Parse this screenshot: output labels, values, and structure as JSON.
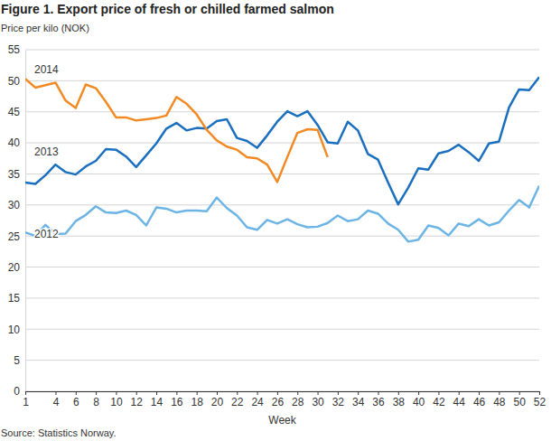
{
  "chart_data": {
    "type": "line",
    "title": "Figure 1. Export price of fresh or chilled farmed salmon",
    "subtitle": "Price per kilo (NOK)",
    "x_label": "Week",
    "source": "Source: Statistics Norway.",
    "x": [
      1,
      2,
      3,
      4,
      5,
      6,
      7,
      8,
      9,
      10,
      11,
      12,
      13,
      14,
      15,
      16,
      17,
      18,
      19,
      20,
      21,
      22,
      23,
      24,
      25,
      26,
      27,
      28,
      29,
      30,
      31,
      32,
      33,
      34,
      35,
      36,
      37,
      38,
      39,
      40,
      41,
      42,
      43,
      44,
      45,
      46,
      47,
      48,
      49,
      50,
      51,
      52
    ],
    "xlim": [
      1,
      52
    ],
    "xticks": [
      1,
      4,
      6,
      8,
      10,
      12,
      14,
      16,
      18,
      20,
      22,
      24,
      26,
      28,
      30,
      32,
      34,
      36,
      38,
      40,
      42,
      44,
      46,
      48,
      50,
      52
    ],
    "ylim": [
      0,
      55
    ],
    "yticks": [
      0,
      5,
      10,
      15,
      20,
      25,
      30,
      35,
      40,
      45,
      50,
      55
    ],
    "grid": true,
    "series": [
      {
        "name": "2012",
        "color": "#6cb4e4",
        "values": [
          25.6,
          25.0,
          26.8,
          25.3,
          25.4,
          27.4,
          28.4,
          29.8,
          28.8,
          28.7,
          29.1,
          28.4,
          26.7,
          29.6,
          29.4,
          28.8,
          29.1,
          29.1,
          29.0,
          31.2,
          29.5,
          28.3,
          26.4,
          26.0,
          27.6,
          27.0,
          27.7,
          26.9,
          26.4,
          26.5,
          27.1,
          28.3,
          27.4,
          27.7,
          29.1,
          28.6,
          27.0,
          26.0,
          24.1,
          24.4,
          26.7,
          26.3,
          25.1,
          27.0,
          26.6,
          27.7,
          26.7,
          27.2,
          29.1,
          30.8,
          29.6,
          33.1
        ]
      },
      {
        "name": "2013",
        "color": "#1a6fbf",
        "values": [
          33.6,
          33.4,
          34.8,
          36.5,
          35.3,
          34.9,
          36.2,
          37.1,
          39.0,
          38.9,
          37.8,
          36.1,
          38.0,
          39.9,
          42.3,
          43.2,
          42.0,
          42.4,
          42.3,
          43.5,
          43.8,
          40.8,
          40.3,
          39.2,
          41.2,
          43.4,
          45.1,
          44.3,
          45.1,
          42.9,
          40.1,
          39.9,
          43.4,
          42.0,
          38.2,
          37.3,
          33.6,
          30.1,
          32.8,
          35.9,
          35.7,
          38.3,
          38.7,
          39.7,
          38.5,
          37.1,
          39.9,
          40.2,
          45.7,
          48.6,
          48.5,
          50.6
        ]
      },
      {
        "name": "2014",
        "color": "#f28a24",
        "values": [
          50.3,
          48.9,
          49.3,
          49.7,
          46.8,
          45.6,
          49.4,
          48.8,
          46.6,
          44.1,
          44.1,
          43.6,
          43.8,
          44.0,
          44.4,
          47.4,
          46.3,
          44.6,
          42.1,
          40.4,
          39.4,
          38.9,
          37.7,
          37.5,
          36.5,
          33.7,
          37.7,
          41.6,
          42.2,
          42.1,
          37.7,
          null,
          null,
          null,
          null,
          null,
          null,
          null,
          null,
          null,
          null,
          null,
          null,
          null,
          null,
          null,
          null,
          null,
          null,
          null,
          null,
          null
        ]
      }
    ]
  }
}
